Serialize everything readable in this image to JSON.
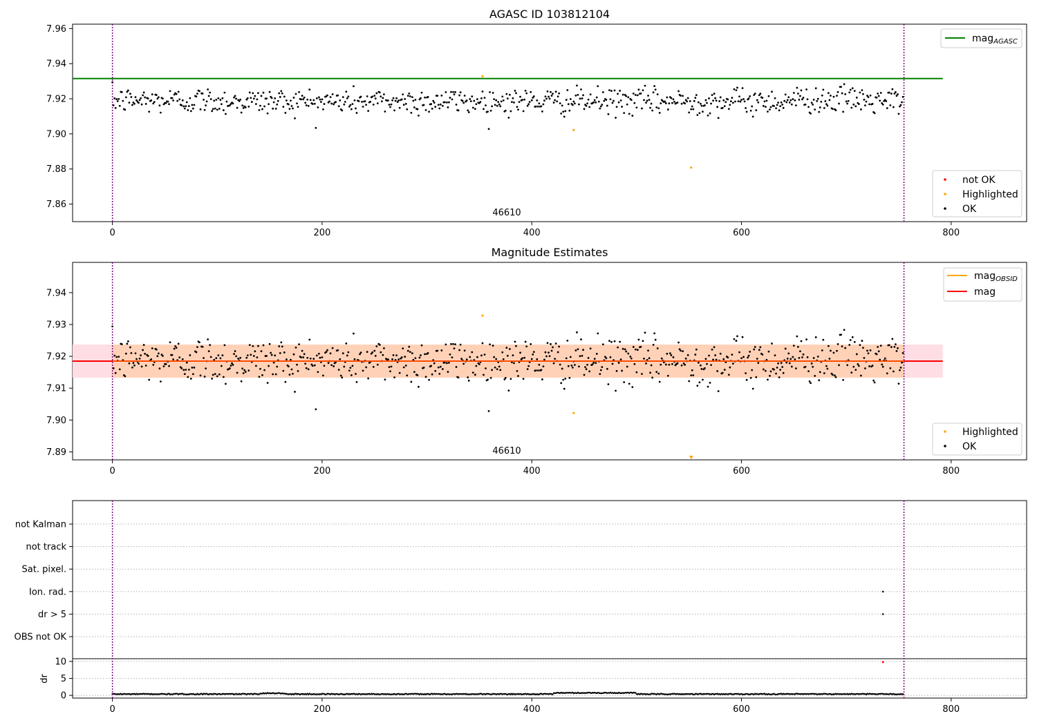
{
  "chart_data": [
    {
      "type": "scatter",
      "title": "AGASC ID 103812104",
      "annotation": "46610",
      "xlim": [
        -38,
        872
      ],
      "ylim": [
        7.85,
        7.9625
      ],
      "xticks": [
        0,
        200,
        400,
        600,
        800
      ],
      "yticks": [
        7.86,
        7.88,
        7.9,
        7.92,
        7.94,
        7.96
      ],
      "ytick_labels": [
        "7.86",
        "7.88",
        "7.90",
        "7.92",
        "7.94",
        "7.96"
      ],
      "vlines": [
        0,
        755
      ],
      "hline": {
        "label": "mag",
        "label_sub": "AGASC",
        "y": 7.9315,
        "x_end": 792,
        "color": "#008000"
      },
      "legend_top": [
        {
          "label": "mag",
          "sub": "AGASC",
          "kind": "line",
          "color": "#008000"
        }
      ],
      "legend_bottom": [
        {
          "label": "not OK",
          "kind": "point",
          "color": "#ff0000"
        },
        {
          "label": "Highlighted",
          "kind": "point",
          "color": "#ffa500"
        },
        {
          "label": "OK",
          "kind": "point",
          "color": "#000000"
        }
      ],
      "series": [
        {
          "name": "OK",
          "color": "#000000",
          "generated": {
            "n": 755,
            "center": 7.9185,
            "spread": 0.0052
          }
        },
        {
          "name": "Highlighted",
          "color": "#ffa500",
          "points": [
            [
              353,
              7.9328
            ],
            [
              440,
              7.9022
            ],
            [
              552,
              7.8808
            ]
          ]
        },
        {
          "name": "not OK",
          "color": "#ff0000",
          "points": []
        }
      ]
    },
    {
      "type": "scatter",
      "title": "Magnitude Estimates",
      "annotation": "46610",
      "xlim": [
        -38,
        872
      ],
      "ylim": [
        7.8875,
        7.9495
      ],
      "xticks": [
        0,
        200,
        400,
        600,
        800
      ],
      "yticks": [
        7.89,
        7.9,
        7.91,
        7.92,
        7.93,
        7.94
      ],
      "ytick_labels": [
        "7.89",
        "7.90",
        "7.91",
        "7.92",
        "7.93",
        "7.94"
      ],
      "vlines": [
        0,
        755
      ],
      "band": {
        "y_low": 7.9133,
        "y_high": 7.9237,
        "x_end": 792,
        "color_outer": "#ffdde4",
        "color_inner": "#ffd2b8"
      },
      "hline": {
        "label": "mag",
        "y": 7.9185,
        "x_end": 792,
        "color": "#ff0000"
      },
      "obsid_line": {
        "label": "mag",
        "label_sub": "OBSID",
        "y": 7.9185,
        "x_end": 755,
        "color": "#ffa500"
      },
      "legend_top": [
        {
          "label": "mag",
          "sub": "OBSID",
          "kind": "line",
          "color": "#ffa500"
        },
        {
          "label": "mag",
          "sub": "",
          "kind": "line",
          "color": "#ff0000"
        }
      ],
      "legend_bottom": [
        {
          "label": "Highlighted",
          "kind": "point",
          "color": "#ffa500"
        },
        {
          "label": "OK",
          "kind": "point",
          "color": "#000000"
        }
      ],
      "series": [
        {
          "name": "OK",
          "color": "#000000",
          "generated": {
            "n": 755,
            "center": 7.9185,
            "spread": 0.0052
          }
        },
        {
          "name": "Highlighted",
          "color": "#ffa500",
          "points": [
            [
              353,
              7.9328
            ],
            [
              440,
              7.9022
            ]
          ],
          "offscale_markers": [
            552
          ]
        }
      ]
    },
    {
      "type": "scatter",
      "flags": {
        "categories": [
          "not Kalman",
          "not track",
          "Sat. pixel.",
          "Ion. rad.",
          "dr > 5",
          "OBS not OK"
        ],
        "flagged_points": [
          {
            "category": "Ion. rad.",
            "x": 735
          },
          {
            "category": "dr > 5",
            "x": 735
          }
        ]
      },
      "dr": {
        "ylabel": "dr",
        "ylim": [
          -0.8,
          10.8
        ],
        "yticks": [
          0,
          5,
          10
        ],
        "ytick_labels": [
          "0",
          "5",
          "10"
        ],
        "flagged": [
          {
            "x": 735,
            "y": 9.8,
            "color": "#ff0000"
          }
        ],
        "series_color": "#000000"
      },
      "xlim": [
        -38,
        872
      ],
      "xticks": [
        0,
        200,
        400,
        600,
        800
      ],
      "xtick_labels": [
        "0",
        "200",
        "400",
        "600",
        "800"
      ],
      "vlines": [
        0,
        755
      ]
    }
  ]
}
